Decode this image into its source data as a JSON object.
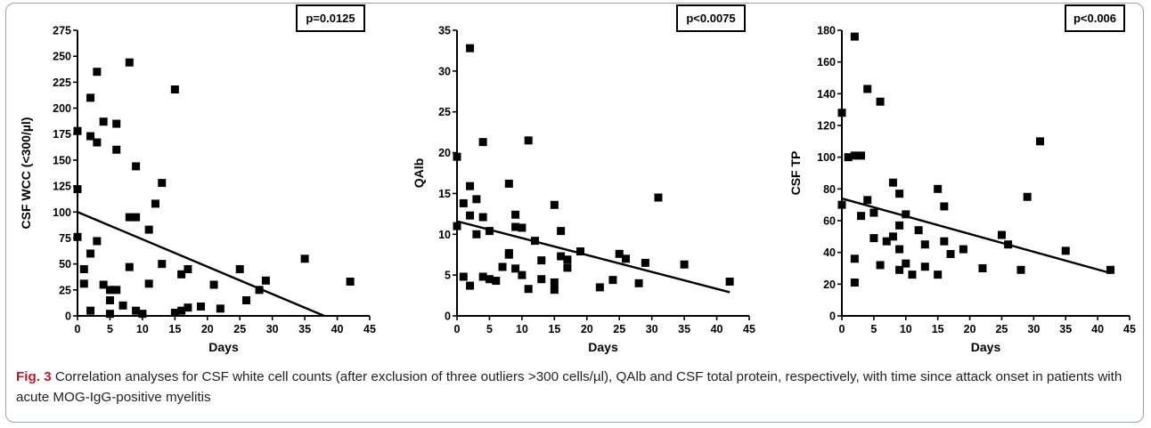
{
  "caption": {
    "label": "Fig. 3",
    "text": " Correlation analyses for CSF white cell counts (after exclusion of three outliers >300 cells/µl), QAlb and CSF total protein, respectively, with time since attack onset in patients with acute MOG-IgG-positive myelitis"
  },
  "chart_data": [
    {
      "type": "scatter",
      "title": "",
      "xlabel": "Days",
      "ylabel": "CSF WCC (<300/µl)",
      "xlim": [
        0,
        45
      ],
      "ylim": [
        0,
        275
      ],
      "xticks": [
        0,
        5,
        10,
        15,
        20,
        25,
        30,
        35,
        40,
        45
      ],
      "yticks": [
        0,
        25,
        50,
        75,
        100,
        125,
        150,
        175,
        200,
        225,
        250,
        275
      ],
      "annotation": "p=0.0125",
      "regression_line": {
        "x": [
          0,
          38
        ],
        "y": [
          100,
          0
        ]
      },
      "points": {
        "x": [
          0,
          0,
          0,
          1,
          1,
          2,
          2,
          2,
          2,
          3,
          3,
          3,
          4,
          4,
          5,
          5,
          5,
          6,
          6,
          6,
          7,
          8,
          8,
          8,
          9,
          9,
          9,
          10,
          11,
          11,
          12,
          13,
          13,
          15,
          15,
          16,
          16,
          17,
          17,
          19,
          21,
          22,
          25,
          26,
          28,
          29,
          35,
          42
        ],
        "y": [
          178,
          122,
          76,
          45,
          31,
          210,
          173,
          60,
          5,
          235,
          167,
          72,
          187,
          30,
          25,
          15,
          2,
          185,
          160,
          25,
          10,
          244,
          95,
          47,
          144,
          95,
          5,
          2,
          83,
          31,
          108,
          128,
          50,
          218,
          3,
          40,
          5,
          45,
          8,
          9,
          30,
          7,
          45,
          15,
          25,
          34,
          55,
          33
        ]
      }
    },
    {
      "type": "scatter",
      "title": "",
      "xlabel": "Days",
      "ylabel": "QAlb",
      "xlim": [
        0,
        45
      ],
      "ylim": [
        0,
        35
      ],
      "xticks": [
        0,
        5,
        10,
        15,
        20,
        25,
        30,
        35,
        40,
        45
      ],
      "yticks": [
        0,
        5,
        10,
        15,
        20,
        25,
        30,
        35
      ],
      "annotation": "p<0.0075",
      "regression_line": {
        "x": [
          0,
          42
        ],
        "y": [
          11.6,
          2.9
        ]
      },
      "points": {
        "x": [
          0,
          0,
          1,
          1,
          2,
          2,
          2,
          2,
          3,
          3,
          4,
          4,
          4,
          5,
          5,
          6,
          7,
          8,
          8,
          8,
          9,
          9,
          9,
          10,
          10,
          11,
          11,
          12,
          13,
          13,
          15,
          15,
          15,
          16,
          16,
          17,
          17,
          19,
          22,
          24,
          25,
          26,
          28,
          29,
          31,
          35,
          42
        ],
        "y": [
          19.5,
          11,
          13.8,
          4.8,
          32.8,
          15.9,
          12.3,
          3.7,
          14.3,
          10,
          21.3,
          12.1,
          4.8,
          10.4,
          4.5,
          4.3,
          6,
          16.2,
          7.7,
          7.5,
          12.4,
          10.9,
          5.8,
          10.8,
          5,
          21.5,
          3.3,
          9.2,
          6.8,
          4.5,
          13.6,
          4.1,
          3.2,
          10.4,
          7.3,
          6.9,
          5.9,
          7.9,
          3.5,
          4.4,
          7.6,
          7,
          4,
          6.5,
          14.5,
          6.3,
          4.2
        ]
      }
    },
    {
      "type": "scatter",
      "title": "",
      "xlabel": "Days",
      "ylabel": "CSF TP",
      "xlim": [
        0,
        45
      ],
      "ylim": [
        0,
        180
      ],
      "xticks": [
        0,
        5,
        10,
        15,
        20,
        25,
        30,
        35,
        40,
        45
      ],
      "yticks": [
        0,
        20,
        40,
        60,
        80,
        100,
        120,
        140,
        160,
        180
      ],
      "annotation": "p<0.006",
      "regression_line": {
        "x": [
          0,
          42
        ],
        "y": [
          74,
          27
        ]
      },
      "points": {
        "x": [
          0,
          0,
          1,
          2,
          2,
          2,
          2,
          3,
          3,
          4,
          4,
          5,
          5,
          6,
          6,
          7,
          8,
          8,
          9,
          9,
          9,
          9,
          10,
          10,
          11,
          12,
          13,
          13,
          15,
          15,
          16,
          16,
          17,
          19,
          22,
          25,
          26,
          28,
          29,
          31,
          35,
          42
        ],
        "y": [
          128,
          70,
          100,
          176,
          101,
          36,
          21,
          101,
          63,
          143,
          73,
          65,
          49,
          135,
          32,
          47,
          84,
          50,
          77,
          57,
          42,
          29,
          64,
          33,
          26,
          54,
          45,
          31,
          80,
          26,
          69,
          47,
          39,
          42,
          30,
          51,
          45,
          29,
          75,
          110,
          41,
          29
        ]
      }
    }
  ]
}
